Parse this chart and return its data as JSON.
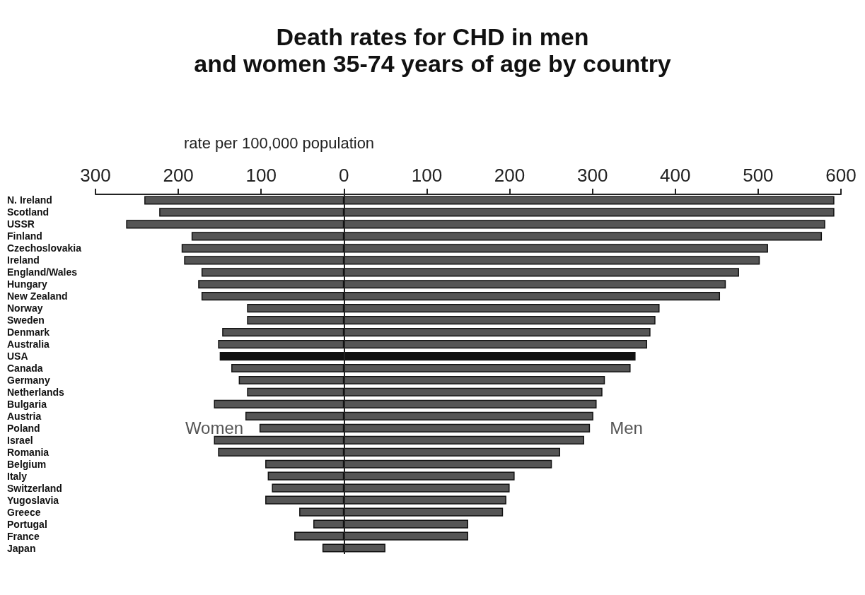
{
  "chart_data": {
    "type": "bar",
    "orientation": "horizontal",
    "stacked": true,
    "title": "Death rates for CHD in men\nand women 35-74 years of age by country",
    "xlabel": "rate per 100,000 population",
    "categories": [
      "N. Ireland",
      "Scotland",
      "USSR",
      "Finland",
      "Czechoslovakia",
      "Ireland",
      "England/Wales",
      "Hungary",
      "New Zealand",
      "Norway",
      "Sweden",
      "Denmark",
      "Australia",
      "USA",
      "Canada",
      "Germany",
      "Netherlands",
      "Bulgaria",
      "Austria",
      "Poland",
      "Israel",
      "Romania",
      "Belgium",
      "Italy",
      "Switzerland",
      "Yugoslavia",
      "Greece",
      "Portugal",
      "France",
      "Japan"
    ],
    "series": [
      {
        "name": "Women",
        "color": "#555555",
        "colors": [
          "#555555",
          "#555555",
          "#555555",
          "#555555",
          "#555555",
          "#555555",
          "#555555",
          "#555555",
          "#555555",
          "#555555",
          "#555555",
          "#555555",
          "#555555",
          "#111111",
          "#555555",
          "#555555",
          "#555555",
          "#555555",
          "#555555",
          "#555555",
          "#555555",
          "#555555",
          "#555555",
          "#555555",
          "#555555",
          "#555555",
          "#555555",
          "#555555",
          "#555555",
          "#555555"
        ],
        "values": [
          -241,
          -223,
          -263,
          -184,
          -196,
          -193,
          -172,
          -176,
          -172,
          -117,
          -117,
          -147,
          -152,
          -150,
          -136,
          -127,
          -117,
          -157,
          -119,
          -102,
          -157,
          -152,
          -95,
          -92,
          -87,
          -95,
          -54,
          -37,
          -60,
          -26
        ]
      },
      {
        "name": "Men",
        "color": "#555555",
        "colors": [
          "#555555",
          "#555555",
          "#555555",
          "#555555",
          "#555555",
          "#555555",
          "#555555",
          "#555555",
          "#555555",
          "#555555",
          "#555555",
          "#555555",
          "#555555",
          "#111111",
          "#555555",
          "#555555",
          "#555555",
          "#555555",
          "#555555",
          "#555555",
          "#555555",
          "#555555",
          "#555555",
          "#555555",
          "#555555",
          "#555555",
          "#555555",
          "#555555",
          "#555555",
          "#555555"
        ],
        "values": [
          592,
          592,
          581,
          577,
          512,
          502,
          477,
          461,
          454,
          381,
          376,
          370,
          366,
          352,
          346,
          315,
          312,
          305,
          301,
          297,
          290,
          261,
          251,
          206,
          200,
          196,
          192,
          150,
          150,
          50
        ]
      }
    ],
    "xlim": [
      -300,
      600
    ],
    "xticks": [
      {
        "value": -300,
        "label": "300"
      },
      {
        "value": -200,
        "label": "200"
      },
      {
        "value": -100,
        "label": "100"
      },
      0,
      100,
      200,
      300,
      400,
      500,
      600
    ],
    "ref_lines": [
      {
        "axis": "x",
        "value": 0
      }
    ],
    "grid": false,
    "legend": false
  }
}
